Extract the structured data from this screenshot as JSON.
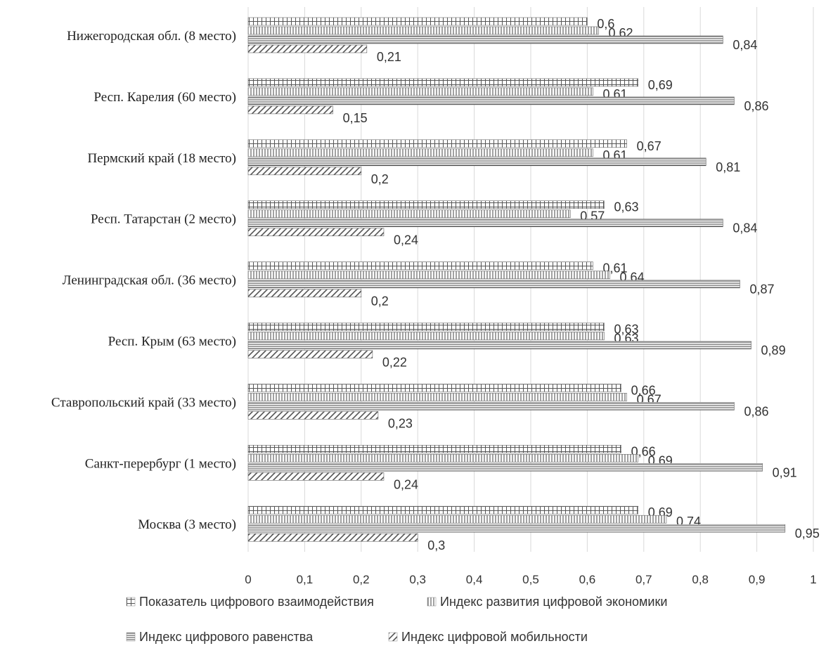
{
  "chart_data": {
    "type": "bar",
    "orientation": "horizontal",
    "categories": [
      "Нижегородская обл. (8 место)",
      "Респ. Карелия (60 место)",
      "Пермский край (18 место)",
      "Респ. Татарстан (2 место)",
      "Ленинградская обл. (36 место)",
      "Респ. Крым (63 место)",
      "Ставропольский край (33 место)",
      "Санкт-перербург (1 место)",
      "Москва (3 место)"
    ],
    "series": [
      {
        "name": "Показатель цифрового взаимодействия",
        "values": [
          0.6,
          0.69,
          0.67,
          0.63,
          0.61,
          0.63,
          0.66,
          0.66,
          0.69
        ],
        "labels": [
          "0,6",
          "0,69",
          "0,67",
          "0,63",
          "0,61",
          "0,63",
          "0,66",
          "0,66",
          "0,69"
        ],
        "pattern": "grid"
      },
      {
        "name": "Индекс развития цифровой экономики",
        "values": [
          0.62,
          0.61,
          0.61,
          0.57,
          0.64,
          0.63,
          0.67,
          0.69,
          0.74
        ],
        "labels": [
          "0,62",
          "0,61",
          "0,61",
          "0,57",
          "0,64",
          "0,63",
          "0,67",
          "0,69",
          "0,74"
        ],
        "pattern": "vertical"
      },
      {
        "name": "Индекс цифрового равенства",
        "values": [
          0.84,
          0.86,
          0.81,
          0.84,
          0.87,
          0.89,
          0.86,
          0.91,
          0.95
        ],
        "labels": [
          "0,84",
          "0,86",
          "0,81",
          "0,84",
          "0,87",
          "0,89",
          "0,86",
          "0,91",
          "0,95"
        ],
        "pattern": "horizontal"
      },
      {
        "name": "Индекс цифровой мобильности",
        "values": [
          0.21,
          0.15,
          0.2,
          0.24,
          0.2,
          0.22,
          0.23,
          0.24,
          0.3
        ],
        "labels": [
          "0,21",
          "0,15",
          "0,2",
          "0,24",
          "0,2",
          "0,22",
          "0,23",
          "0,24",
          "0,3"
        ],
        "pattern": "diagonal"
      }
    ],
    "xlim": [
      0,
      1
    ],
    "xticks": [
      "0",
      "0,1",
      "0,2",
      "0,3",
      "0,4",
      "0,5",
      "0,6",
      "0,7",
      "0,8",
      "0,9",
      "1"
    ],
    "grid": true,
    "legend_position": "bottom",
    "colors": {
      "stroke": "#555555",
      "grid": "#d9d9d9",
      "text": "#333333"
    }
  }
}
